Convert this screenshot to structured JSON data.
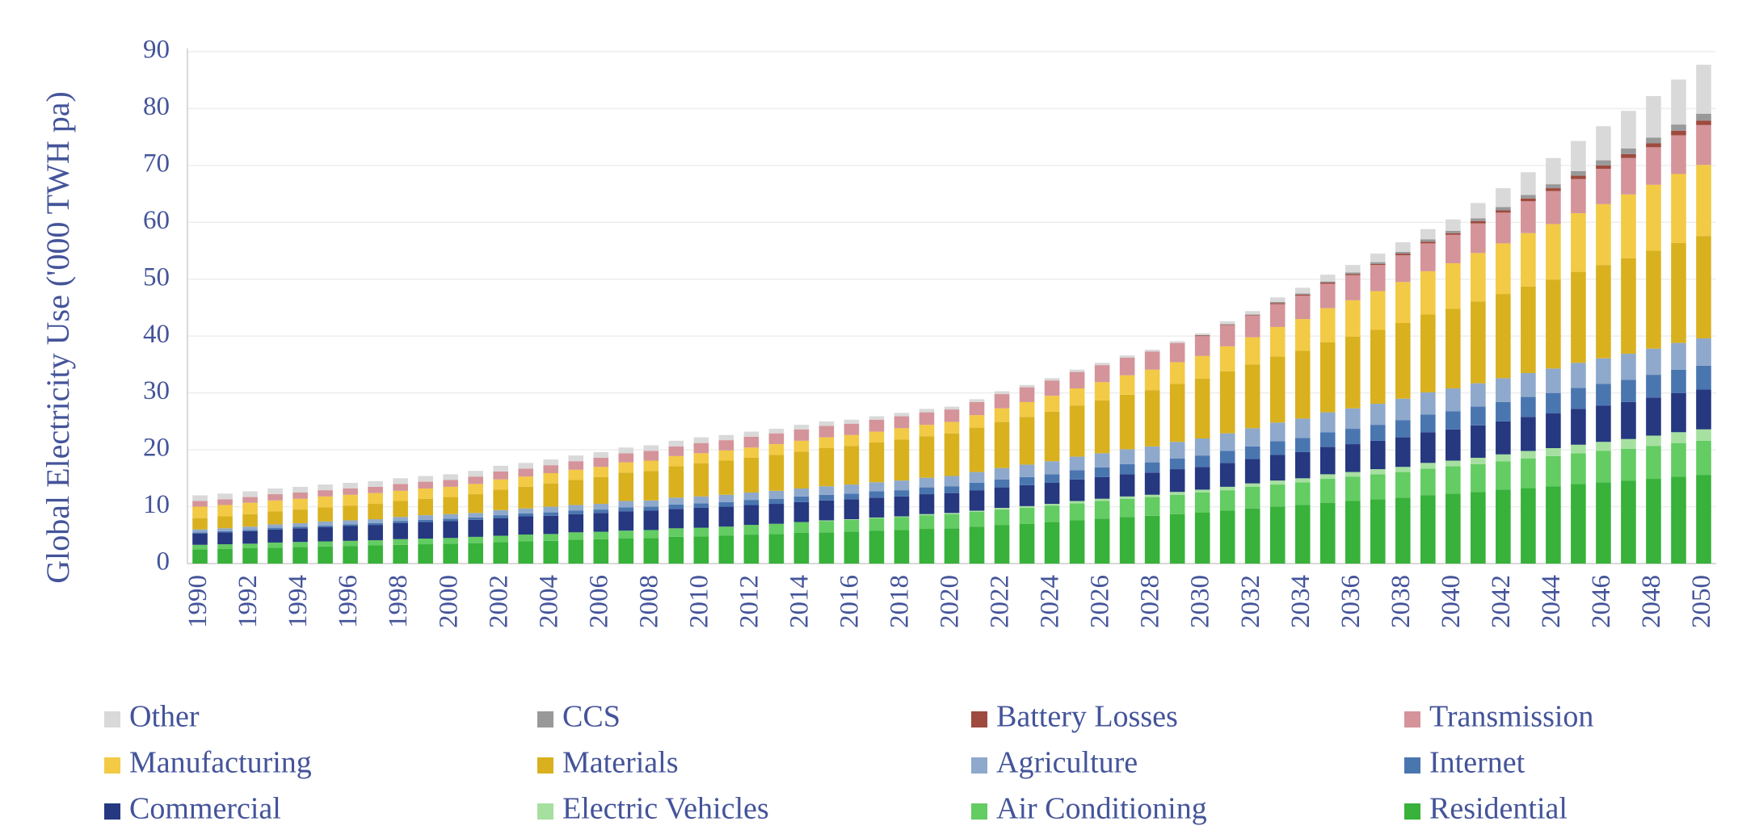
{
  "chart_data": {
    "type": "stacked-bar",
    "y_label": "Global Electricity Use ('000 TWH pa)",
    "categories": [
      "1990",
      null,
      "1992",
      null,
      "1994",
      null,
      "1996",
      null,
      "1998",
      null,
      "2000",
      null,
      "2002",
      null,
      "2004",
      null,
      "2006",
      null,
      "2008",
      null,
      "2010",
      null,
      "2012",
      null,
      "2014",
      null,
      "2016",
      null,
      "2018",
      null,
      "2020",
      null,
      "2022",
      null,
      "2024",
      null,
      "2026",
      null,
      "2028",
      null,
      "2030",
      null,
      "2032",
      null,
      "2034",
      null,
      "2036",
      null,
      "2038",
      null,
      "2040",
      null,
      "2042",
      null,
      "2044",
      null,
      "2046",
      null,
      "2048",
      null,
      "2050"
    ],
    "ylim": [
      0,
      90
    ],
    "yticks": [
      0,
      10,
      20,
      30,
      40,
      50,
      60,
      70,
      80,
      90
    ],
    "grid": true,
    "series": [
      {
        "name": "Other",
        "color": "#d9d9d9",
        "values": [
          1,
          1,
          1,
          1,
          1,
          1,
          1,
          1,
          1,
          1,
          1,
          1,
          1,
          1,
          1,
          1,
          1,
          1,
          1,
          1,
          1,
          0.9,
          0.9,
          0.8,
          0.8,
          0.8,
          0.7,
          0.6,
          0.6,
          0.6,
          0.5,
          0.5,
          0.5,
          0.4,
          0.4,
          0.4,
          0.4,
          0.4,
          0.3,
          0.3,
          0.3,
          0.5,
          0.6,
          0.8,
          1,
          1.2,
          1.3,
          1.5,
          1.7,
          1.8,
          2,
          2.7,
          3.3,
          4,
          4.6,
          5.3,
          6,
          6.6,
          7.3,
          7.9,
          8.6
        ]
      },
      {
        "name": "CCS",
        "color": "#999999",
        "values": [
          0,
          0,
          0,
          0,
          0,
          0,
          0,
          0,
          0,
          0,
          0,
          0,
          0,
          0,
          0,
          0,
          0,
          0,
          0,
          0,
          0,
          0,
          0,
          0,
          0,
          0,
          0,
          0,
          0,
          0,
          0,
          0,
          0,
          0,
          0,
          0,
          0,
          0,
          0,
          0,
          0.1,
          0.1,
          0.1,
          0.2,
          0.2,
          0.2,
          0.3,
          0.3,
          0.3,
          0.4,
          0.4,
          0.5,
          0.6,
          0.6,
          0.7,
          0.8,
          0.9,
          1,
          1,
          1.1,
          1.2
        ]
      },
      {
        "name": "Battery Losses",
        "color": "#9e4a3e",
        "values": [
          0,
          0,
          0,
          0,
          0,
          0,
          0,
          0,
          0,
          0,
          0,
          0,
          0,
          0,
          0,
          0,
          0,
          0,
          0,
          0,
          0,
          0,
          0,
          0,
          0,
          0,
          0,
          0,
          0,
          0,
          0,
          0,
          0,
          0,
          0,
          0,
          0,
          0,
          0,
          0,
          0.1,
          0.1,
          0.1,
          0.2,
          0.2,
          0.2,
          0.2,
          0.2,
          0.3,
          0.3,
          0.3,
          0.4,
          0.4,
          0.5,
          0.5,
          0.6,
          0.6,
          0.7,
          0.7,
          0.8,
          0.8
        ]
      },
      {
        "name": "Transmission",
        "color": "#d4949a",
        "values": [
          1,
          1,
          1,
          1.1,
          1.1,
          1.1,
          1.1,
          1.1,
          1.2,
          1.2,
          1.2,
          1.3,
          1.4,
          1.4,
          1.4,
          1.5,
          1.6,
          1.6,
          1.7,
          1.7,
          1.8,
          1.8,
          1.9,
          1.9,
          2,
          2,
          2,
          2.1,
          2.1,
          2.2,
          2.2,
          2.3,
          2.5,
          2.6,
          2.7,
          2.9,
          3,
          3.1,
          3.2,
          3.4,
          3.5,
          3.7,
          3.8,
          4,
          4.1,
          4.3,
          4.4,
          4.6,
          4.7,
          4.9,
          5,
          5.2,
          5.4,
          5.6,
          5.8,
          6,
          6.2,
          6.4,
          6.6,
          6.8,
          7
        ]
      },
      {
        "name": "Manufacturing",
        "color": "#f2ca45",
        "values": [
          2,
          2,
          2,
          1.9,
          1.9,
          1.9,
          1.9,
          1.9,
          1.8,
          1.8,
          1.8,
          1.8,
          1.8,
          1.8,
          1.8,
          1.8,
          1.8,
          1.8,
          1.8,
          1.8,
          1.8,
          1.8,
          1.8,
          1.9,
          1.9,
          1.9,
          1.9,
          1.9,
          2,
          2,
          2,
          2.2,
          2.4,
          2.6,
          2.8,
          3,
          3.2,
          3.4,
          3.6,
          3.8,
          4,
          4.4,
          4.8,
          5.2,
          5.6,
          6,
          6.4,
          6.8,
          7.2,
          7.6,
          8,
          8.5,
          8.9,
          9.4,
          9.8,
          10.3,
          10.7,
          11.2,
          11.6,
          12.1,
          12.5
        ]
      },
      {
        "name": "Materials",
        "color": "#d9b11f",
        "values": [
          2,
          2.1,
          2.2,
          2.3,
          2.4,
          2.5,
          2.6,
          2.7,
          2.8,
          2.9,
          3,
          3.3,
          3.6,
          3.8,
          4.1,
          4.4,
          4.7,
          5,
          5.2,
          5.5,
          5.8,
          6,
          6.1,
          6.3,
          6.5,
          6.7,
          6.8,
          7,
          7.2,
          7.3,
          7.5,
          7.8,
          8.1,
          8.4,
          8.7,
          9,
          9.3,
          9.6,
          9.9,
          10.2,
          10.5,
          10.9,
          11.2,
          11.6,
          11.9,
          12.3,
          12.6,
          13,
          13.3,
          13.7,
          14,
          14.4,
          14.8,
          15.2,
          15.6,
          16,
          16.4,
          16.8,
          17.2,
          17.6,
          18
        ]
      },
      {
        "name": "Agriculture",
        "color": "#8ea9cc",
        "values": [
          0.5,
          0.5,
          0.6,
          0.6,
          0.6,
          0.7,
          0.7,
          0.7,
          0.7,
          0.8,
          0.8,
          0.8,
          0.9,
          0.9,
          1,
          1,
          1,
          1.1,
          1.1,
          1.2,
          1.2,
          1.3,
          1.3,
          1.4,
          1.4,
          1.5,
          1.6,
          1.6,
          1.7,
          1.7,
          1.8,
          1.9,
          2,
          2.2,
          2.3,
          2.4,
          2.5,
          2.6,
          2.8,
          2.9,
          3,
          3.1,
          3.2,
          3.3,
          3.4,
          3.5,
          3.6,
          3.7,
          3.8,
          3.9,
          4,
          4.1,
          4.2,
          4.2,
          4.3,
          4.4,
          4.5,
          4.6,
          4.6,
          4.7,
          4.8
        ]
      },
      {
        "name": "Internet",
        "color": "#4a76b0",
        "values": [
          0.2,
          0.2,
          0.2,
          0.3,
          0.3,
          0.3,
          0.3,
          0.3,
          0.4,
          0.4,
          0.4,
          0.4,
          0.5,
          0.5,
          0.6,
          0.6,
          0.6,
          0.7,
          0.7,
          0.8,
          0.8,
          0.8,
          0.9,
          0.9,
          1,
          1,
          1,
          1.1,
          1.1,
          1.2,
          1.2,
          1.3,
          1.4,
          1.4,
          1.5,
          1.6,
          1.7,
          1.8,
          1.8,
          1.9,
          2,
          2.1,
          2.2,
          2.4,
          2.5,
          2.6,
          2.7,
          2.8,
          3,
          3.1,
          3.2,
          3.3,
          3.4,
          3.5,
          3.6,
          3.7,
          3.8,
          3.9,
          4,
          4.1,
          4.2
        ]
      },
      {
        "name": "Commercial",
        "color": "#253880",
        "values": [
          2,
          2.1,
          2.2,
          2.3,
          2.4,
          2.5,
          2.6,
          2.7,
          2.8,
          2.9,
          3,
          3,
          3.1,
          3.2,
          3.2,
          3.2,
          3.3,
          3.4,
          3.4,
          3.4,
          3.5,
          3.5,
          3.5,
          3.5,
          3.5,
          3.5,
          3.5,
          3.5,
          3.5,
          3.5,
          3.5,
          3.6,
          3.6,
          3.7,
          3.7,
          3.8,
          3.8,
          3.9,
          3.9,
          4,
          4,
          4.2,
          4.3,
          4.5,
          4.6,
          4.8,
          4.9,
          5,
          5.2,
          5.4,
          5.5,
          5.7,
          5.8,
          6,
          6.1,
          6.3,
          6.4,
          6.5,
          6.7,
          6.9,
          7
        ]
      },
      {
        "name": "Electric Vehicles",
        "color": "#a6e0a0",
        "values": [
          0,
          0,
          0,
          0,
          0,
          0,
          0,
          0,
          0,
          0,
          0,
          0,
          0,
          0,
          0,
          0,
          0,
          0,
          0,
          0,
          0,
          0,
          0,
          0,
          0,
          0.1,
          0.1,
          0.1,
          0.1,
          0.2,
          0.2,
          0.2,
          0.3,
          0.3,
          0.3,
          0.4,
          0.4,
          0.4,
          0.4,
          0.5,
          0.5,
          0.6,
          0.6,
          0.7,
          0.7,
          0.8,
          0.8,
          0.9,
          0.9,
          1,
          1,
          1.1,
          1.2,
          1.3,
          1.4,
          1.5,
          1.6,
          1.7,
          1.8,
          1.9,
          2
        ]
      },
      {
        "name": "Air Conditioning",
        "color": "#63cc63",
        "values": [
          0.8,
          0.8,
          0.8,
          0.9,
          0.9,
          0.9,
          0.9,
          0.9,
          1,
          1,
          1,
          1.1,
          1.1,
          1.2,
          1.2,
          1.3,
          1.3,
          1.4,
          1.4,
          1.5,
          1.5,
          1.6,
          1.7,
          1.8,
          1.9,
          2,
          2.1,
          2.2,
          2.3,
          2.4,
          2.5,
          2.6,
          2.7,
          2.8,
          2.9,
          3,
          3.1,
          3.2,
          3.3,
          3.4,
          3.5,
          3.6,
          3.8,
          3.9,
          4,
          4.2,
          4.3,
          4.4,
          4.5,
          4.7,
          4.8,
          4.9,
          5,
          5.2,
          5.3,
          5.4,
          5.5,
          5.6,
          5.8,
          5.9,
          6
        ]
      },
      {
        "name": "Residential",
        "color": "#38b23a",
        "values": [
          2.5,
          2.6,
          2.7,
          2.8,
          2.9,
          3,
          3.1,
          3.2,
          3.3,
          3.4,
          3.5,
          3.6,
          3.8,
          3.9,
          4,
          4.2,
          4.3,
          4.4,
          4.5,
          4.7,
          4.8,
          4.9,
          5.1,
          5.2,
          5.4,
          5.5,
          5.6,
          5.8,
          5.9,
          6.1,
          6.2,
          6.5,
          6.8,
          7,
          7.3,
          7.6,
          7.9,
          8.2,
          8.4,
          8.7,
          9,
          9.3,
          9.7,
          10,
          10.3,
          10.7,
          11,
          11.3,
          11.6,
          12,
          12.3,
          12.6,
          13,
          13.3,
          13.6,
          14,
          14.3,
          14.6,
          14.9,
          15.3,
          15.6
        ]
      }
    ]
  }
}
